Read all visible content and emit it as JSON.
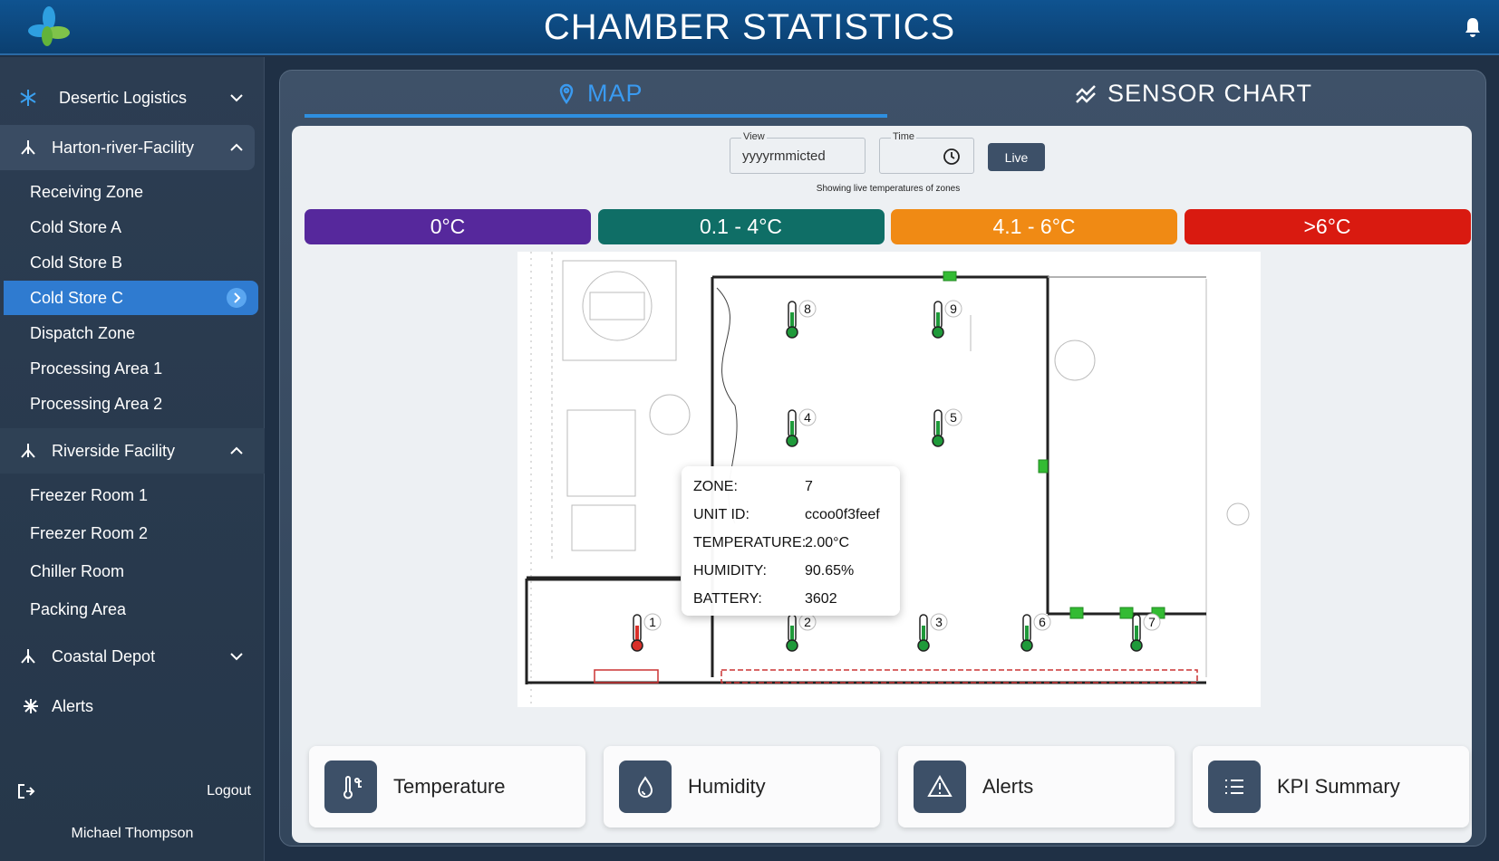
{
  "header": {
    "title": "CHAMBER STATISTICS"
  },
  "sidebar": {
    "groups": [
      {
        "label": "Desertic Logistics",
        "expanded": false,
        "items": []
      },
      {
        "label": "Harton-river-Facility",
        "expanded": true,
        "items": [
          "Receiving Zone",
          "Cold Store A",
          "Cold Store B",
          "Cold Store C",
          "Dispatch Zone",
          "Processing Area 1",
          "Processing Area 2"
        ],
        "active_item": 3
      },
      {
        "label": "Riverside Facility",
        "expanded": true,
        "items": [
          "Freezer Room 1",
          "Freezer Room 2",
          "Chiller Room",
          "Packing Area"
        ]
      },
      {
        "label": "Coastal Depot",
        "expanded": false,
        "items": []
      }
    ],
    "alerts": "Alerts",
    "logout": "Logout",
    "user": "Michael Thompson"
  },
  "tabs": {
    "items": [
      "MAP",
      "SENSOR CHART"
    ],
    "active": 0
  },
  "controls": {
    "view_label": "View",
    "view_value": "yyyyrmmicted",
    "time_label": "Time",
    "live_button": "Live",
    "note": "Showing live temperatures of zones"
  },
  "legend": [
    {
      "label": "0°C",
      "color": "#56289c"
    },
    {
      "label": "0.1 - 4°C",
      "color": "#0f6e66"
    },
    {
      "label": "4.1 - 6°C",
      "color": "#f08a14"
    },
    {
      "label": ">6°C",
      "color": "#d91a10"
    }
  ],
  "sensors": [
    {
      "label": "1",
      "color": "#d9302a"
    },
    {
      "label": "2",
      "color": "#1f9a3a"
    },
    {
      "label": "3",
      "color": "#1f9a3a"
    },
    {
      "label": "4",
      "color": "#1f9a3a"
    },
    {
      "label": "5",
      "color": "#1f9a3a"
    },
    {
      "label": "6",
      "color": "#1f9a3a"
    },
    {
      "label": "7",
      "color": "#1f9a3a"
    },
    {
      "label": "8",
      "color": "#1f9a3a"
    },
    {
      "label": "9",
      "color": "#1f9a3a"
    }
  ],
  "tooltip": {
    "rows": [
      [
        "ZONE:",
        "7"
      ],
      [
        "UNIT ID:",
        "ccoo0f3feef"
      ],
      [
        "TEMPERATURE:",
        "2.00°C"
      ],
      [
        "HUMIDITY:",
        "90.65%"
      ],
      [
        "BATTERY:",
        "3602"
      ]
    ]
  },
  "cards": [
    "Temperature",
    "Humidity",
    "Alerts",
    "KPI Summary"
  ]
}
